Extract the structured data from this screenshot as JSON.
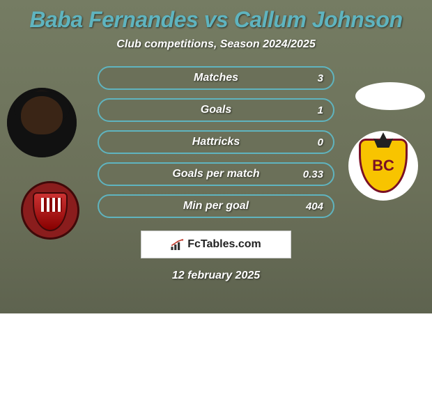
{
  "card": {
    "background_gradient": [
      "#757c63",
      "#6b7059",
      "#5e634f"
    ],
    "title": "Baba Fernandes vs Callum Johnson",
    "title_color": "#5fb4bf",
    "subtitle": "Club competitions, Season 2024/2025",
    "date": "12 february 2025"
  },
  "stats": {
    "pill_stroke": "#5fb4bf",
    "pill_fill": "#6b7059",
    "rows": [
      {
        "label": "Matches",
        "left": "",
        "right": "3"
      },
      {
        "label": "Goals",
        "left": "",
        "right": "1"
      },
      {
        "label": "Hattricks",
        "left": "",
        "right": "0"
      },
      {
        "label": "Goals per match",
        "left": "",
        "right": "0.33"
      },
      {
        "label": "Min per goal",
        "left": "",
        "right": "404"
      }
    ]
  },
  "players": {
    "left": {
      "name": "Baba Fernandes",
      "club_hint": "Accrington Stanley",
      "crest_colors": [
        "#8a1d1d",
        "#400909"
      ]
    },
    "right": {
      "name": "Callum Johnson",
      "club_hint": "Bradford City",
      "crest_colors": [
        "#f8c400",
        "#7a1025"
      ],
      "crest_text": "BC"
    }
  },
  "brand": {
    "text": "FcTables.com"
  }
}
